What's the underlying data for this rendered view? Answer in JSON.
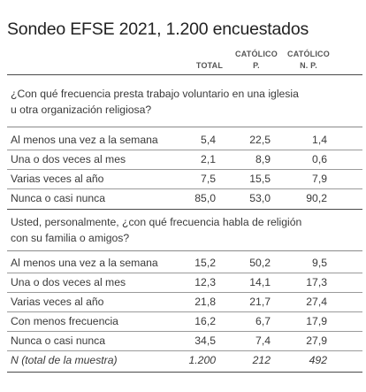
{
  "title": "Sondeo EFSE 2021, 1.200 encuestados",
  "headers": {
    "total": "TOTAL",
    "catolico_p": [
      "CATÓLICO",
      "P."
    ],
    "catolico_np": [
      "CATÓLICO",
      "N. P."
    ]
  },
  "sections": [
    {
      "question": [
        "¿Con qué frecuencia presta trabajo voluntario en una iglesia",
        "u otra organización religiosa?"
      ],
      "rows": [
        {
          "label": "Al menos una vez a la semana",
          "total": "5,4",
          "cp": "22,5",
          "cnp": "1,4"
        },
        {
          "label": "Una o dos veces al mes",
          "total": "2,1",
          "cp": "8,9",
          "cnp": "0,6"
        },
        {
          "label": "Varias veces al año",
          "total": "7,5",
          "cp": "15,5",
          "cnp": "7,9"
        },
        {
          "label": "Nunca o casi nunca",
          "total": "85,0",
          "cp": "53,0",
          "cnp": "90,2"
        }
      ]
    },
    {
      "question": [
        "Usted, personalmente, ¿con qué frecuencia habla de religión",
        "con su familia o amigos?"
      ],
      "rows": [
        {
          "label": "Al menos una vez a la semana",
          "total": "15,2",
          "cp": "50,2",
          "cnp": "9,5"
        },
        {
          "label": "Una o dos veces al mes",
          "total": "12,3",
          "cp": "14,1",
          "cnp": "17,3"
        },
        {
          "label": "Varias veces al año",
          "total": "21,8",
          "cp": "21,7",
          "cnp": "27,4"
        },
        {
          "label": "Con menos frecuencia",
          "total": "16,2",
          "cp": "6,7",
          "cnp": "17,9"
        },
        {
          "label": "Nunca o casi nunca",
          "total": "34,5",
          "cp": "7,4",
          "cnp": "27,9"
        },
        {
          "label": "N (total de la muestra)",
          "total": "1.200",
          "cp": "212",
          "cnp": "492"
        }
      ]
    }
  ]
}
